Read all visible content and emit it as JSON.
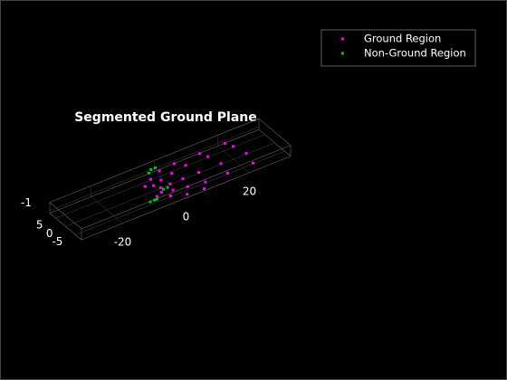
{
  "chart_data": {
    "type": "scatter3d",
    "title": "Segmented Ground Plane",
    "xlim": [
      -33,
      33
    ],
    "ylim": [
      -8,
      8
    ],
    "zlim": [
      -2,
      2
    ],
    "xticks": [
      -20,
      0,
      20
    ],
    "yticks": [
      -5,
      0,
      5
    ],
    "zticks": [
      -1
    ],
    "grid": true,
    "legend": "top-right",
    "series": [
      {
        "name": "Ground Region",
        "color": "#ff00ff",
        "x": [
          -3,
          -4,
          -4,
          -6,
          -6,
          0,
          -1,
          -1,
          -3,
          -3,
          4,
          3,
          3,
          1,
          1,
          9,
          8,
          8,
          6,
          6,
          16,
          15,
          15,
          14,
          24,
          23,
          23,
          22
        ],
        "y": [
          0,
          2,
          -2,
          3,
          -3,
          0,
          3,
          -3,
          5,
          -5,
          0,
          4,
          -4,
          7,
          -7,
          0,
          5,
          -5,
          7.5,
          -7.5,
          0,
          5,
          -5,
          7.5,
          0,
          5,
          -5,
          7.5
        ],
        "z": [
          -1.7,
          -1.7,
          -1.7,
          -1.7,
          -1.7,
          -1.7,
          -1.7,
          -1.7,
          -1.7,
          -1.7,
          -1.7,
          -1.7,
          -1.7,
          -1.7,
          -1.7,
          -1.7,
          -1.7,
          -1.7,
          -1.7,
          -1.7,
          -1.7,
          -1.7,
          -1.7,
          -1.7,
          -1.7,
          -1.7,
          -1.7,
          -1.7
        ]
      },
      {
        "name": "Non-Ground Region",
        "color": "#00c800",
        "x": [
          -3,
          -2,
          -1,
          -4,
          -3,
          -10,
          -9,
          -8
        ],
        "y": [
          6,
          6.5,
          6,
          -3,
          -3.5,
          -6,
          -6.5,
          -6
        ],
        "z": [
          0,
          0.5,
          1,
          0,
          0.5,
          0,
          0.5,
          0
        ]
      }
    ]
  }
}
